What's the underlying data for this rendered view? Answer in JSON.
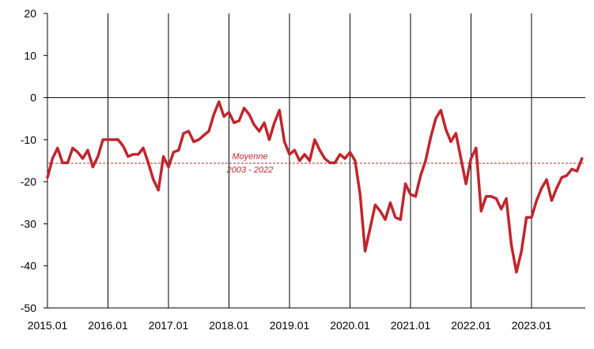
{
  "chart_data": {
    "type": "line",
    "title": "",
    "xlabel": "",
    "ylabel": "",
    "ylim": [
      -50,
      20
    ],
    "yticks": [
      20,
      10,
      0,
      -10,
      -20,
      -30,
      -40,
      -50
    ],
    "x_tick_labels": [
      "2015.01",
      "2016.01",
      "2017.01",
      "2018.01",
      "2019.01",
      "2020.01",
      "2021.01",
      "2022.01",
      "2023.01"
    ],
    "grid": "vertical lines at each year",
    "line_color": "#c0262c",
    "series": [
      {
        "start": "2015.01",
        "frequency": "monthly",
        "values": [
          -19,
          -14.5,
          -12,
          -15.5,
          -15.5,
          -12,
          -13,
          -14.5,
          -12.5,
          -16.5,
          -14,
          -10,
          -10,
          -10,
          -10,
          -11.5,
          -14,
          -13.5,
          -13.5,
          -12,
          -15.5,
          -19.5,
          -22,
          -14,
          -16.5,
          -13,
          -12.5,
          -8.5,
          -8,
          -10.5,
          -10,
          -9,
          -8,
          -4,
          -1,
          -4.5,
          -3.5,
          -6,
          -5.5,
          -2.5,
          -4,
          -6.5,
          -8,
          -6,
          -10,
          -6,
          -3,
          -10.5,
          -13.5,
          -12.5,
          -15,
          -13.5,
          -15,
          -10,
          -12.5,
          -14.5,
          -15.5,
          -15.5,
          -13.5,
          -14.5,
          -13,
          -15,
          -23,
          -36.5,
          -31,
          -25.5,
          -27,
          -29,
          -25,
          -28.5,
          -29,
          -20.5,
          -23,
          -23.5,
          -18.5,
          -15,
          -9.5,
          -5,
          -3,
          -7.5,
          -10.5,
          -8.5,
          -14.5,
          -20.5,
          -14.5,
          -12,
          -27,
          -23.5,
          -23.5,
          -24,
          -26.5,
          -24,
          -35,
          -41.5,
          -36.5,
          -28.5,
          -28.5,
          -24.5,
          -21.5,
          -19.5,
          -24.5,
          -21.5,
          -19,
          -18.5,
          -17,
          -17.5,
          -14.5
        ]
      }
    ],
    "reference_line": {
      "value": -15.6,
      "label_line1": "Moyenne",
      "label_line2": "2003 - 2022",
      "color": "#c0262c"
    }
  }
}
